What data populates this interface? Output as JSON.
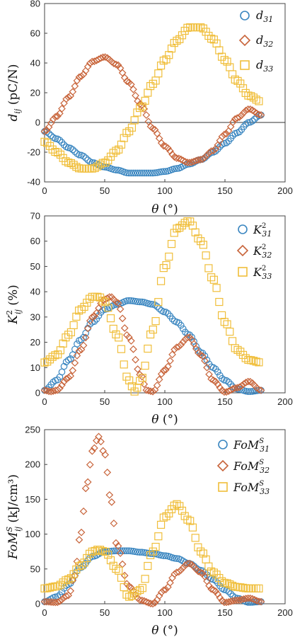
{
  "chart_data": [
    {
      "type": "scatter",
      "ylabel": "d_ij (pC/N)",
      "xlabel": "θ (°)",
      "xlim": [
        0,
        200
      ],
      "ylim": [
        -40,
        80
      ],
      "xticks": [
        0,
        50,
        100,
        150,
        200
      ],
      "yticks": [
        -40,
        -20,
        0,
        20,
        40,
        60,
        80
      ],
      "zero_line": true,
      "legend_position": "top-right",
      "series": [
        {
          "name": "d31",
          "marker": "circle",
          "color": "#3a86c0",
          "x": [
            0,
            10,
            20,
            30,
            40,
            50,
            60,
            70,
            80,
            90,
            100,
            110,
            120,
            130,
            140,
            150,
            160,
            170,
            180
          ],
          "y": [
            -6,
            -11,
            -17,
            -22,
            -27,
            -30,
            -32,
            -34,
            -34,
            -34,
            -33,
            -31,
            -28,
            -25,
            -20,
            -14,
            -7,
            0,
            5
          ]
        },
        {
          "name": "d32",
          "marker": "diamond",
          "color": "#c8643a",
          "x": [
            0,
            10,
            20,
            30,
            40,
            50,
            60,
            70,
            80,
            90,
            100,
            110,
            120,
            130,
            140,
            150,
            160,
            170,
            180
          ],
          "y": [
            -6,
            4,
            17,
            31,
            41,
            44,
            39,
            27,
            12,
            -4,
            -16,
            -24,
            -27,
            -25,
            -19,
            -8,
            3,
            9,
            5
          ]
        },
        {
          "name": "d33",
          "marker": "square",
          "color": "#f0be3a",
          "x": [
            0,
            10,
            20,
            30,
            40,
            50,
            60,
            70,
            80,
            90,
            100,
            110,
            120,
            130,
            140,
            150,
            160,
            170,
            180
          ],
          "y": [
            -13,
            -20,
            -27,
            -31,
            -31,
            -27,
            -19,
            -6,
            10,
            26,
            42,
            55,
            64,
            64,
            56,
            42,
            28,
            18,
            14
          ]
        }
      ],
      "legend": [
        "d_{31}",
        "d_{32}",
        "d_{33}"
      ]
    },
    {
      "type": "scatter",
      "ylabel": "K²_ij (%)",
      "xlabel": "θ (°)",
      "xlim": [
        0,
        200
      ],
      "ylim": [
        0,
        70
      ],
      "xticks": [
        0,
        50,
        100,
        150,
        200
      ],
      "yticks": [
        0,
        10,
        20,
        30,
        40,
        50,
        60,
        70
      ],
      "legend_position": "top-right",
      "series": [
        {
          "name": "K31",
          "marker": "circle",
          "color": "#3a86c0",
          "x": [
            0,
            10,
            20,
            30,
            40,
            50,
            60,
            70,
            80,
            90,
            100,
            110,
            120,
            130,
            140,
            150,
            160,
            170,
            180
          ],
          "y": [
            1,
            5,
            13,
            21,
            28,
            33,
            35,
            36.5,
            36,
            35,
            32,
            28,
            23,
            16,
            10,
            5,
            1.5,
            0.5,
            1
          ]
        },
        {
          "name": "K32",
          "marker": "diamond",
          "color": "#c8643a",
          "x": [
            0,
            5,
            10,
            20,
            30,
            40,
            50,
            55,
            60,
            70,
            80,
            85,
            90,
            100,
            110,
            120,
            130,
            140,
            150,
            160,
            170,
            180
          ],
          "y": [
            1,
            0.5,
            1,
            6,
            17,
            30,
            37,
            38,
            36,
            22,
            7,
            1,
            0.5,
            9,
            18,
            22,
            15,
            5,
            0.3,
            2,
            4.5,
            1
          ]
        },
        {
          "name": "K33",
          "marker": "square",
          "color": "#f0be3a",
          "x": [
            0,
            10,
            20,
            30,
            40,
            45,
            50,
            60,
            70,
            75,
            80,
            90,
            100,
            110,
            120,
            130,
            140,
            150,
            160,
            170,
            180
          ],
          "y": [
            12,
            15,
            23,
            33,
            38,
            38,
            36,
            23,
            5,
            0.5,
            5,
            25,
            50,
            65,
            68,
            60,
            45,
            28,
            17,
            13,
            12
          ]
        }
      ],
      "legend": [
        "K^2_{31}",
        "K^2_{32}",
        "K^2_{33}"
      ]
    },
    {
      "type": "scatter",
      "ylabel": "FoM^S_ij (kJ/cm³)",
      "xlabel": "θ (°)",
      "xlim": [
        0,
        200
      ],
      "ylim": [
        0,
        250
      ],
      "xticks": [
        0,
        50,
        100,
        150,
        200
      ],
      "yticks": [
        0,
        50,
        100,
        150,
        200,
        250
      ],
      "legend_position": "top-right",
      "series": [
        {
          "name": "FoM31",
          "marker": "circle",
          "color": "#3a86c0",
          "x": [
            0,
            10,
            20,
            30,
            40,
            50,
            60,
            70,
            80,
            90,
            100,
            110,
            120,
            130,
            140,
            150,
            160,
            170,
            180
          ],
          "y": [
            3,
            10,
            28,
            52,
            68,
            75,
            76,
            76,
            74,
            72,
            69,
            65,
            58,
            48,
            35,
            20,
            8,
            2,
            3
          ]
        },
        {
          "name": "FoM32",
          "marker": "diamond",
          "color": "#c8643a",
          "x": [
            0,
            10,
            20,
            25,
            30,
            35,
            40,
            45,
            50,
            55,
            60,
            70,
            80,
            90,
            100,
            110,
            120,
            130,
            140,
            150,
            160,
            170,
            180
          ],
          "y": [
            3,
            2,
            12,
            40,
            100,
            170,
            220,
            240,
            215,
            150,
            85,
            25,
            5,
            0,
            20,
            45,
            58,
            45,
            20,
            2,
            5,
            8,
            3
          ]
        },
        {
          "name": "FoM33",
          "marker": "square",
          "color": "#f0be3a",
          "x": [
            0,
            10,
            20,
            30,
            40,
            45,
            50,
            60,
            70,
            80,
            90,
            100,
            110,
            120,
            130,
            140,
            150,
            160,
            170,
            180
          ],
          "y": [
            22,
            25,
            35,
            55,
            75,
            78,
            75,
            50,
            10,
            20,
            75,
            125,
            143,
            120,
            75,
            45,
            30,
            24,
            22,
            22
          ]
        }
      ],
      "legend": [
        "FoM^S_{31}",
        "FoM^S_{32}",
        "FoM^S_{33}"
      ]
    }
  ]
}
